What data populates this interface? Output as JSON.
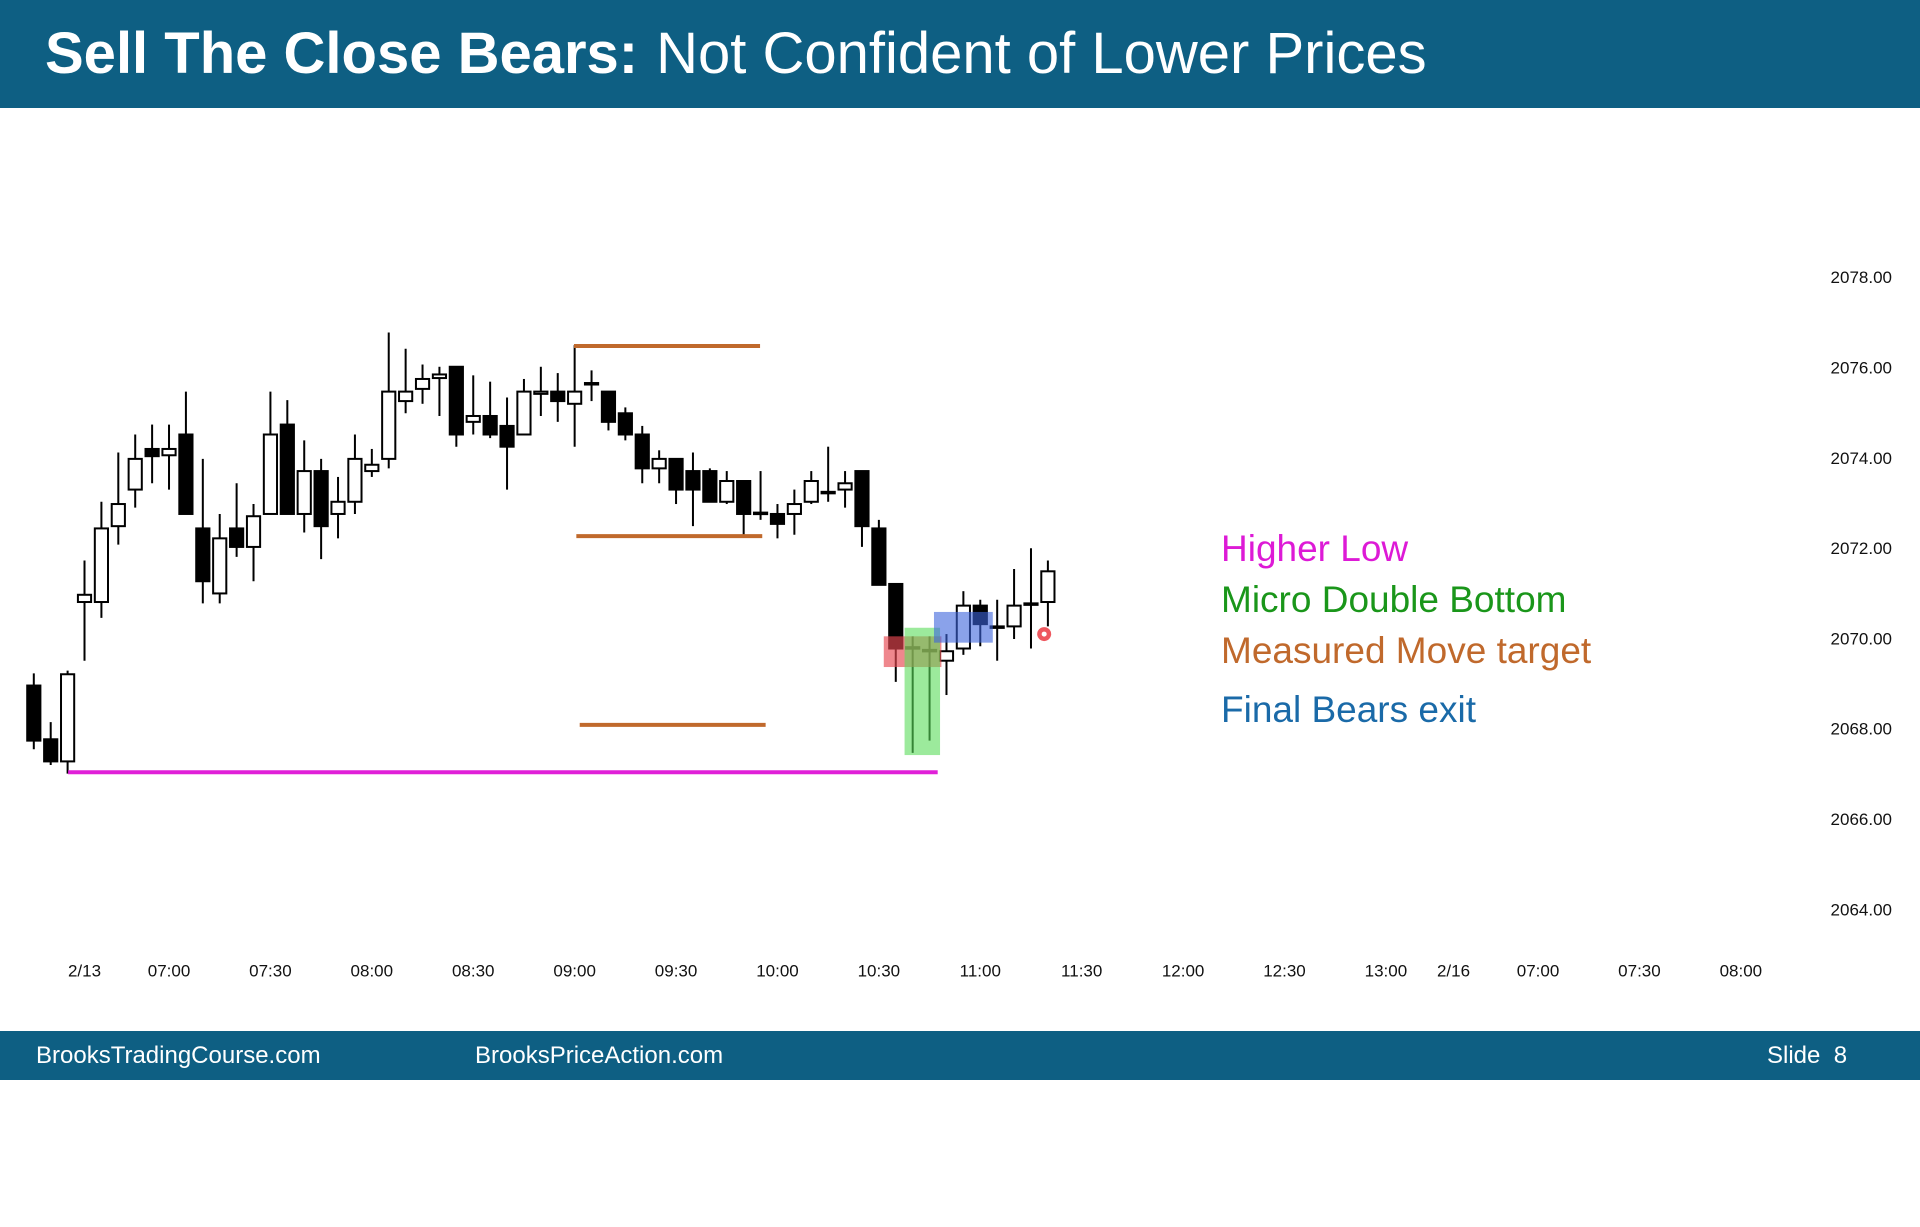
{
  "header": {
    "title_bold": "Sell The Close Bears:",
    "title_rest": "Not Confident of Lower Prices"
  },
  "chart_data": {
    "type": "candlestick",
    "up_color": "#ffffff",
    "down_color": "#000000",
    "edge_color": "#000000",
    "x": [
      0,
      1,
      2,
      3,
      4,
      5,
      6,
      7,
      8,
      9,
      10,
      11,
      12,
      13,
      14,
      15,
      16,
      17,
      18,
      19,
      20,
      21,
      22,
      23,
      24,
      25,
      26,
      27,
      28,
      29,
      30,
      31,
      32,
      33,
      34,
      35,
      36,
      37,
      38,
      39,
      40,
      41,
      42,
      43,
      44,
      45,
      46,
      47,
      48,
      49,
      50,
      51,
      52,
      53,
      54,
      55,
      56,
      57,
      58,
      59,
      60
    ],
    "open": [
      2068.99,
      2067.8,
      2067.31,
      2070.84,
      2070.84,
      2072.52,
      2073.33,
      2074.23,
      2074.09,
      2074.55,
      2072.47,
      2071.03,
      2072.47,
      2072.06,
      2072.79,
      2074.77,
      2072.79,
      2073.74,
      2072.79,
      2073.06,
      2073.74,
      2074.01,
      2075.29,
      2075.56,
      2075.8,
      2076.05,
      2074.83,
      2074.96,
      2074.74,
      2074.55,
      2075.45,
      2075.5,
      2075.23,
      2075.66,
      2075.5,
      2075.02,
      2074.55,
      2073.8,
      2074.01,
      2073.74,
      2073.74,
      2073.06,
      2073.52,
      2072.79,
      2072.79,
      2072.79,
      2073.06,
      2073.25,
      2073.33,
      2073.74,
      2072.47,
      2071.24,
      2069.81,
      2069.75,
      2069.54,
      2069.81,
      2070.76,
      2070.27,
      2070.3,
      2070.78,
      2070.84
    ],
    "high": [
      2069.26,
      2068.18,
      2069.32,
      2071.76,
      2073.06,
      2074.15,
      2074.55,
      2074.77,
      2074.77,
      2075.5,
      2074.01,
      2072.79,
      2073.47,
      2073.01,
      2075.5,
      2075.31,
      2074.42,
      2074.01,
      2073.61,
      2074.55,
      2074.23,
      2076.81,
      2076.45,
      2076.1,
      2076.05,
      2076.05,
      2075.86,
      2075.72,
      2075.37,
      2075.78,
      2076.05,
      2075.91,
      2076.53,
      2075.97,
      2075.5,
      2075.15,
      2074.74,
      2074.2,
      2074.01,
      2074.15,
      2073.8,
      2073.74,
      2073.52,
      2073.74,
      2073.01,
      2073.33,
      2073.74,
      2074.28,
      2073.74,
      2073.74,
      2072.66,
      2071.24,
      2070.08,
      2070.08,
      2070.13,
      2071.08,
      2070.89,
      2070.89,
      2071.57,
      2072.03,
      2071.76
    ],
    "low": [
      2067.58,
      2067.23,
      2067.04,
      2069.54,
      2070.49,
      2072.11,
      2072.93,
      2073.47,
      2073.33,
      2072.79,
      2070.81,
      2070.81,
      2071.84,
      2071.3,
      2072.79,
      2072.79,
      2072.38,
      2071.79,
      2072.25,
      2072.79,
      2073.61,
      2073.8,
      2075.02,
      2075.23,
      2074.96,
      2074.28,
      2074.55,
      2074.47,
      2073.33,
      2074.55,
      2074.96,
      2074.83,
      2074.28,
      2075.29,
      2074.64,
      2074.42,
      2073.47,
      2073.47,
      2073.01,
      2072.52,
      2073.06,
      2073.01,
      2072.33,
      2072.66,
      2072.25,
      2072.33,
      2073.01,
      2073.06,
      2072.93,
      2072.06,
      2071.22,
      2069.07,
      2067.5,
      2067.77,
      2068.78,
      2069.67,
      2069.86,
      2069.54,
      2070.02,
      2069.81,
      2070.3
    ],
    "close": [
      2067.77,
      2067.31,
      2069.24,
      2071.0,
      2072.47,
      2073.01,
      2074.01,
      2074.07,
      2074.23,
      2072.79,
      2071.3,
      2072.25,
      2072.06,
      2072.74,
      2074.55,
      2072.79,
      2073.74,
      2072.52,
      2073.06,
      2074.01,
      2073.88,
      2075.5,
      2075.5,
      2075.78,
      2075.88,
      2074.55,
      2074.96,
      2074.55,
      2074.28,
      2075.5,
      2075.5,
      2075.29,
      2075.5,
      2075.69,
      2074.83,
      2074.55,
      2073.8,
      2074.01,
      2073.33,
      2073.33,
      2073.06,
      2073.52,
      2072.79,
      2072.82,
      2072.57,
      2073.01,
      2073.52,
      2073.28,
      2073.47,
      2072.52,
      2071.22,
      2069.81,
      2069.84,
      2069.78,
      2069.75,
      2070.76,
      2070.35,
      2070.3,
      2070.76,
      2070.81,
      2071.52
    ],
    "xlim": [
      -2,
      104.5
    ],
    "xticks": [
      {
        "value": 3,
        "label": "2/13"
      },
      {
        "value": 8,
        "label": "07:00"
      },
      {
        "value": 14,
        "label": "07:30"
      },
      {
        "value": 20,
        "label": "08:00"
      },
      {
        "value": 26,
        "label": "08:30"
      },
      {
        "value": 32,
        "label": "09:00"
      },
      {
        "value": 38,
        "label": "09:30"
      },
      {
        "value": 44,
        "label": "10:00"
      },
      {
        "value": 50,
        "label": "10:30"
      },
      {
        "value": 56,
        "label": "11:00"
      },
      {
        "value": 62,
        "label": "11:30"
      },
      {
        "value": 68,
        "label": "12:00"
      },
      {
        "value": 74,
        "label": "12:30"
      },
      {
        "value": 80,
        "label": "13:00"
      },
      {
        "value": 84,
        "label": "2/16"
      },
      {
        "value": 89,
        "label": "07:00"
      },
      {
        "value": 95,
        "label": "07:30"
      },
      {
        "value": 101,
        "label": "08:00"
      }
    ],
    "ylim": [
      2063,
      2079.5
    ],
    "yticks": [
      {
        "value": 2064,
        "label": "2064.00"
      },
      {
        "value": 2066,
        "label": "2066.00"
      },
      {
        "value": 2068,
        "label": "2068.00"
      },
      {
        "value": 2070,
        "label": "2070.00"
      },
      {
        "value": 2072,
        "label": "2072.00"
      },
      {
        "value": 2074,
        "label": "2074.00"
      },
      {
        "value": 2076,
        "label": "2076.00"
      },
      {
        "value": 2078,
        "label": "2078.00"
      }
    ],
    "levels": [
      {
        "color": "#c0692c",
        "value": 2076.51,
        "x": [
          31.96,
          42.97
        ]
      },
      {
        "color": "#c0692c",
        "value": 2072.3,
        "x": [
          32.1,
          43.1
        ]
      },
      {
        "color": "#c0692c",
        "value": 2068.12,
        "x": [
          32.3,
          43.3
        ]
      },
      {
        "color": "#e020d8",
        "value": 2067.07,
        "x": [
          2.03,
          53.48
        ]
      }
    ],
    "zones": [
      {
        "color": "rgba(230,70,80,0.65)",
        "x": [
          50.29,
          53.7
        ],
        "y": [
          2069.4,
          2070.08
        ]
      },
      {
        "color": "rgba(90,220,90,0.6)",
        "x": [
          51.52,
          53.62
        ],
        "y": [
          2067.45,
          2070.27
        ]
      },
      {
        "color": "rgba(60,100,220,0.6)",
        "x": [
          53.26,
          56.74
        ],
        "y": [
          2069.94,
          2070.62
        ]
      }
    ],
    "dot": {
      "color": "#e8202a",
      "x": 59.78,
      "y": 2070.13
    },
    "annotations": [
      {
        "text": "Higher Low",
        "color": "#dd1ad6"
      },
      {
        "text": "Micro Double Bottom",
        "color": "#1a961a"
      },
      {
        "text": "Measured Move target",
        "color": "#c0692c"
      },
      {
        "text": "Final Bears exit",
        "color": "#1a6aa8"
      }
    ]
  },
  "footer": {
    "left": "BrooksTradingCourse.com",
    "middle": "BrooksPriceAction.com",
    "slide": "Slide  8"
  }
}
